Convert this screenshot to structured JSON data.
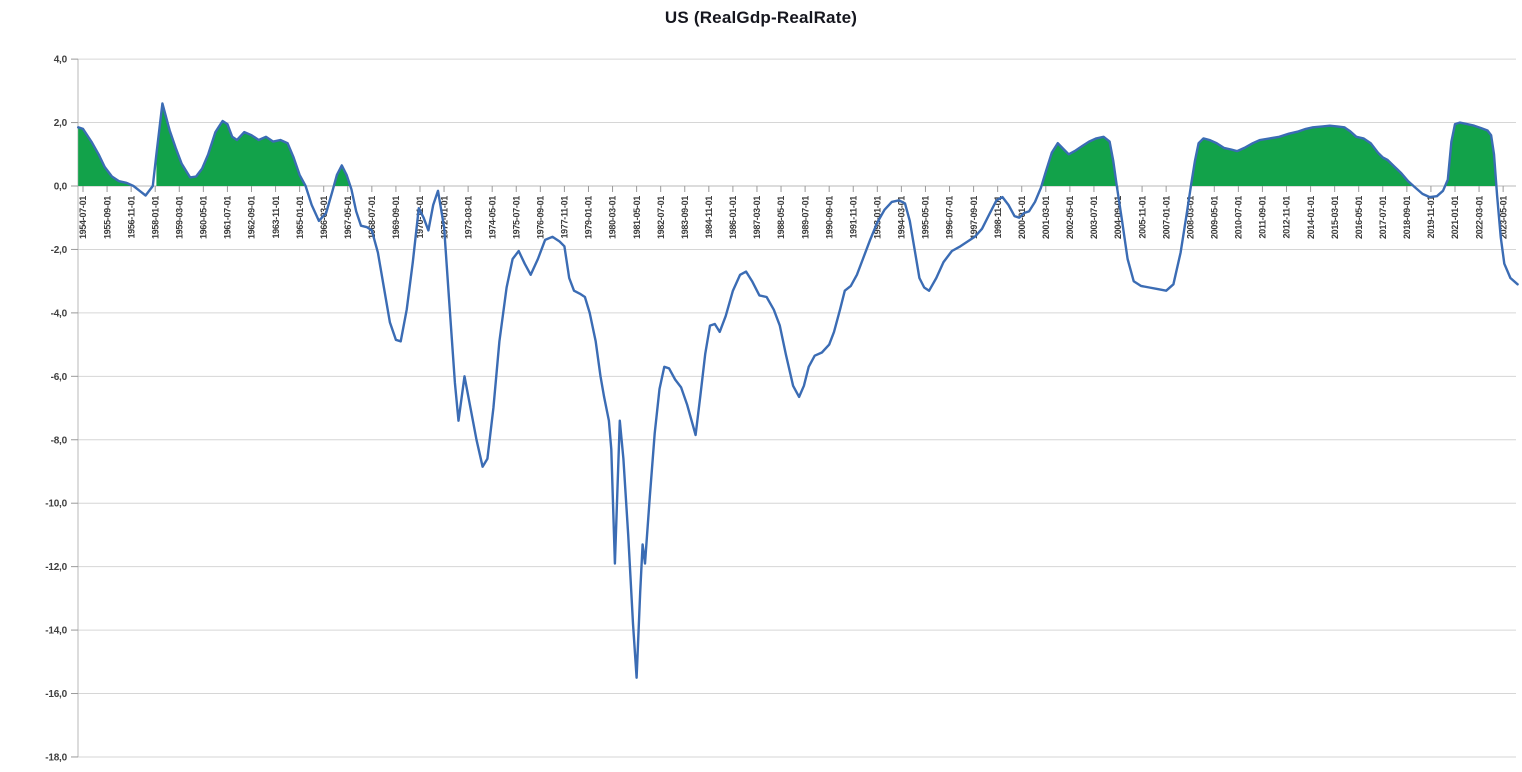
{
  "title": "US (RealGdp-RealRate)",
  "chart_data": {
    "type": "line",
    "title": "US (RealGdp-RealRate)",
    "legend": "none",
    "grid": "horizontal",
    "ylim": [
      -18,
      4
    ],
    "y_tick_step": 2,
    "y_tick_labels": [
      "4,0",
      "2,0",
      "0,0",
      "-2,0",
      "-4,0",
      "-6,0",
      "-8,0",
      "-10,0",
      "-12,0",
      "-14,0",
      "-16,0",
      "-18,0"
    ],
    "x_tick_labels": [
      "1954-07-01",
      "1955-09-01",
      "1956-11-01",
      "1958-01-01",
      "1959-03-01",
      "1960-05-01",
      "1961-07-01",
      "1962-09-01",
      "1963-11-01",
      "1965-01-01",
      "1966-03-01",
      "1967-05-01",
      "1968-07-01",
      "1969-09-01",
      "1970-11-01",
      "1972-01-01",
      "1973-03-01",
      "1974-05-01",
      "1975-07-01",
      "1976-09-01",
      "1977-11-01",
      "1979-01-01",
      "1980-03-01",
      "1981-05-01",
      "1982-07-01",
      "1983-09-01",
      "1984-11-01",
      "1986-01-01",
      "1987-03-01",
      "1988-05-01",
      "1989-07-01",
      "1990-09-01",
      "1991-11-01",
      "1993-01-01",
      "1994-03-01",
      "1995-05-01",
      "1996-07-01",
      "1997-09-01",
      "1998-11-01",
      "2000-01-01",
      "2001-03-01",
      "2002-05-01",
      "2003-07-01",
      "2004-09-01",
      "2005-11-01",
      "2007-01-01",
      "2008-03-01",
      "2009-05-01",
      "2010-07-01",
      "2011-09-01",
      "2012-11-01",
      "2014-01-01",
      "2015-03-01",
      "2016-05-01",
      "2017-07-01",
      "2018-09-01",
      "2019-11-01",
      "2021-01-01",
      "2022-03-01",
      "2023-05-01"
    ],
    "x_label_rotation_deg": -90,
    "colors": {
      "line": "#3b6cb4",
      "positive_area_fill": "#12a24a",
      "gridline": "#d6d6d6",
      "axis_line": "#b9b9b9",
      "tick": "#9a9a9a",
      "tick_label": "#3c3c3c",
      "title": "#15161e"
    },
    "series": [
      {
        "name": "RealGdp-RealRate",
        "x_unit": "index of 14-month x ticks from 1954-07-01",
        "points": [
          [
            -0.2,
            1.85
          ],
          [
            0,
            1.8
          ],
          [
            0.35,
            1.4
          ],
          [
            0.65,
            1.0
          ],
          [
            0.9,
            0.6
          ],
          [
            1.2,
            0.3
          ],
          [
            1.5,
            0.15
          ],
          [
            1.8,
            0.1
          ],
          [
            2.1,
            0.0
          ],
          [
            2.35,
            -0.15
          ],
          [
            2.6,
            -0.3
          ],
          [
            2.9,
            0.0
          ],
          [
            3.05,
            1.0
          ],
          [
            3.3,
            2.6
          ],
          [
            3.6,
            1.75
          ],
          [
            3.85,
            1.2
          ],
          [
            4.1,
            0.7
          ],
          [
            4.45,
            0.27
          ],
          [
            4.7,
            0.3
          ],
          [
            4.95,
            0.55
          ],
          [
            5.2,
            1.0
          ],
          [
            5.5,
            1.7
          ],
          [
            5.8,
            2.05
          ],
          [
            6.0,
            1.95
          ],
          [
            6.2,
            1.55
          ],
          [
            6.4,
            1.45
          ],
          [
            6.7,
            1.7
          ],
          [
            7.0,
            1.6
          ],
          [
            7.3,
            1.45
          ],
          [
            7.6,
            1.55
          ],
          [
            7.9,
            1.4
          ],
          [
            8.2,
            1.45
          ],
          [
            8.5,
            1.35
          ],
          [
            8.75,
            0.9
          ],
          [
            9.0,
            0.35
          ],
          [
            9.25,
            0
          ],
          [
            9.5,
            -0.6
          ],
          [
            9.8,
            -1.1
          ],
          [
            10.1,
            -0.85
          ],
          [
            10.35,
            -0.2
          ],
          [
            10.55,
            0.35
          ],
          [
            10.75,
            0.65
          ],
          [
            10.95,
            0.35
          ],
          [
            11.15,
            -0.1
          ],
          [
            11.35,
            -0.8
          ],
          [
            11.55,
            -1.25
          ],
          [
            11.8,
            -1.3
          ],
          [
            12.0,
            -1.4
          ],
          [
            12.25,
            -2.1
          ],
          [
            12.5,
            -3.2
          ],
          [
            12.75,
            -4.3
          ],
          [
            13.0,
            -4.85
          ],
          [
            13.2,
            -4.9
          ],
          [
            13.45,
            -3.9
          ],
          [
            13.7,
            -2.4
          ],
          [
            13.95,
            -0.7
          ],
          [
            14.15,
            -1.0
          ],
          [
            14.35,
            -1.4
          ],
          [
            14.55,
            -0.6
          ],
          [
            14.75,
            -0.15
          ],
          [
            15.0,
            -1.3
          ],
          [
            15.2,
            -3.5
          ],
          [
            15.45,
            -6.2
          ],
          [
            15.6,
            -7.4
          ],
          [
            15.85,
            -6.0
          ],
          [
            16.1,
            -7.0
          ],
          [
            16.35,
            -8.0
          ],
          [
            16.6,
            -8.85
          ],
          [
            16.8,
            -8.6
          ],
          [
            17.05,
            -7.0
          ],
          [
            17.3,
            -4.9
          ],
          [
            17.6,
            -3.2
          ],
          [
            17.85,
            -2.3
          ],
          [
            18.1,
            -2.05
          ],
          [
            18.35,
            -2.45
          ],
          [
            18.6,
            -2.8
          ],
          [
            18.9,
            -2.3
          ],
          [
            19.2,
            -1.7
          ],
          [
            19.5,
            -1.6
          ],
          [
            19.8,
            -1.75
          ],
          [
            20.0,
            -1.9
          ],
          [
            20.2,
            -2.9
          ],
          [
            20.4,
            -3.3
          ],
          [
            20.65,
            -3.4
          ],
          [
            20.85,
            -3.5
          ],
          [
            21.05,
            -4.0
          ],
          [
            21.3,
            -4.9
          ],
          [
            21.5,
            -6.0
          ],
          [
            21.65,
            -6.65
          ],
          [
            21.85,
            -7.4
          ],
          [
            21.95,
            -8.3
          ],
          [
            22.1,
            -11.9
          ],
          [
            22.3,
            -7.4
          ],
          [
            22.45,
            -8.6
          ],
          [
            22.65,
            -11.0
          ],
          [
            22.85,
            -13.8
          ],
          [
            23.0,
            -15.5
          ],
          [
            23.15,
            -12.8
          ],
          [
            23.25,
            -11.3
          ],
          [
            23.35,
            -11.9
          ],
          [
            23.55,
            -9.8
          ],
          [
            23.75,
            -7.8
          ],
          [
            23.95,
            -6.4
          ],
          [
            24.15,
            -5.7
          ],
          [
            24.35,
            -5.75
          ],
          [
            24.6,
            -6.1
          ],
          [
            24.85,
            -6.35
          ],
          [
            25.1,
            -6.9
          ],
          [
            25.45,
            -7.85
          ],
          [
            25.65,
            -6.6
          ],
          [
            25.85,
            -5.3
          ],
          [
            26.05,
            -4.4
          ],
          [
            26.25,
            -4.35
          ],
          [
            26.45,
            -4.6
          ],
          [
            26.7,
            -4.1
          ],
          [
            27.0,
            -3.3
          ],
          [
            27.3,
            -2.8
          ],
          [
            27.55,
            -2.7
          ],
          [
            27.8,
            -3.0
          ],
          [
            28.1,
            -3.45
          ],
          [
            28.4,
            -3.5
          ],
          [
            28.7,
            -3.9
          ],
          [
            28.95,
            -4.4
          ],
          [
            29.2,
            -5.3
          ],
          [
            29.5,
            -6.3
          ],
          [
            29.75,
            -6.65
          ],
          [
            29.95,
            -6.3
          ],
          [
            30.15,
            -5.7
          ],
          [
            30.4,
            -5.35
          ],
          [
            30.7,
            -5.25
          ],
          [
            31.0,
            -5.0
          ],
          [
            31.2,
            -4.6
          ],
          [
            31.45,
            -3.9
          ],
          [
            31.65,
            -3.3
          ],
          [
            31.9,
            -3.15
          ],
          [
            32.15,
            -2.8
          ],
          [
            32.4,
            -2.3
          ],
          [
            32.7,
            -1.7
          ],
          [
            33.0,
            -1.15
          ],
          [
            33.3,
            -0.75
          ],
          [
            33.6,
            -0.5
          ],
          [
            33.9,
            -0.45
          ],
          [
            34.15,
            -0.55
          ],
          [
            34.35,
            -1.1
          ],
          [
            34.55,
            -2.0
          ],
          [
            34.75,
            -2.9
          ],
          [
            34.95,
            -3.2
          ],
          [
            35.15,
            -3.3
          ],
          [
            35.45,
            -2.9
          ],
          [
            35.75,
            -2.4
          ],
          [
            36.1,
            -2.05
          ],
          [
            36.45,
            -1.9
          ],
          [
            36.75,
            -1.75
          ],
          [
            37.05,
            -1.6
          ],
          [
            37.35,
            -1.35
          ],
          [
            37.65,
            -0.9
          ],
          [
            37.95,
            -0.45
          ],
          [
            38.2,
            -0.35
          ],
          [
            38.45,
            -0.6
          ],
          [
            38.7,
            -0.95
          ],
          [
            38.9,
            -1.0
          ],
          [
            39.1,
            -0.85
          ],
          [
            39.3,
            -0.8
          ],
          [
            39.55,
            -0.5
          ],
          [
            39.8,
            -0.05
          ],
          [
            40.0,
            0.45
          ],
          [
            40.25,
            1.05
          ],
          [
            40.5,
            1.35
          ],
          [
            40.75,
            1.15
          ],
          [
            40.95,
            1.0
          ],
          [
            41.2,
            1.1
          ],
          [
            41.5,
            1.25
          ],
          [
            41.8,
            1.4
          ],
          [
            42.1,
            1.5
          ],
          [
            42.4,
            1.55
          ],
          [
            42.65,
            1.4
          ],
          [
            42.8,
            0.8
          ],
          [
            42.95,
            0.0
          ],
          [
            43.15,
            -1.0
          ],
          [
            43.4,
            -2.3
          ],
          [
            43.65,
            -3.0
          ],
          [
            43.95,
            -3.15
          ],
          [
            44.3,
            -3.2
          ],
          [
            44.65,
            -3.25
          ],
          [
            45.0,
            -3.3
          ],
          [
            45.3,
            -3.1
          ],
          [
            45.6,
            -2.1
          ],
          [
            45.85,
            -0.9
          ],
          [
            46.05,
            0.1
          ],
          [
            46.2,
            0.8
          ],
          [
            46.35,
            1.35
          ],
          [
            46.55,
            1.5
          ],
          [
            46.8,
            1.45
          ],
          [
            47.1,
            1.35
          ],
          [
            47.4,
            1.2
          ],
          [
            47.7,
            1.15
          ],
          [
            47.95,
            1.1
          ],
          [
            48.25,
            1.2
          ],
          [
            48.6,
            1.35
          ],
          [
            48.9,
            1.45
          ],
          [
            49.3,
            1.5
          ],
          [
            49.7,
            1.55
          ],
          [
            50.1,
            1.65
          ],
          [
            50.5,
            1.72
          ],
          [
            50.8,
            1.8
          ],
          [
            51.1,
            1.85
          ],
          [
            51.5,
            1.88
          ],
          [
            51.8,
            1.9
          ],
          [
            52.1,
            1.88
          ],
          [
            52.4,
            1.85
          ],
          [
            52.65,
            1.72
          ],
          [
            52.9,
            1.55
          ],
          [
            53.2,
            1.5
          ],
          [
            53.5,
            1.35
          ],
          [
            53.8,
            1.05
          ],
          [
            54.0,
            0.9
          ],
          [
            54.2,
            0.82
          ],
          [
            54.5,
            0.6
          ],
          [
            54.75,
            0.42
          ],
          [
            55.05,
            0.15
          ],
          [
            55.35,
            -0.05
          ],
          [
            55.65,
            -0.25
          ],
          [
            55.95,
            -0.35
          ],
          [
            56.25,
            -0.32
          ],
          [
            56.5,
            -0.15
          ],
          [
            56.7,
            0.2
          ],
          [
            56.85,
            1.4
          ],
          [
            57.0,
            1.95
          ],
          [
            57.2,
            2.0
          ],
          [
            57.5,
            1.95
          ],
          [
            57.8,
            1.9
          ],
          [
            58.1,
            1.82
          ],
          [
            58.35,
            1.75
          ],
          [
            58.5,
            1.6
          ],
          [
            58.62,
            1.0
          ],
          [
            58.75,
            -0.3
          ],
          [
            58.9,
            -1.6
          ],
          [
            59.05,
            -2.45
          ],
          [
            59.3,
            -2.9
          ],
          [
            59.6,
            -3.1
          ]
        ]
      }
    ]
  }
}
